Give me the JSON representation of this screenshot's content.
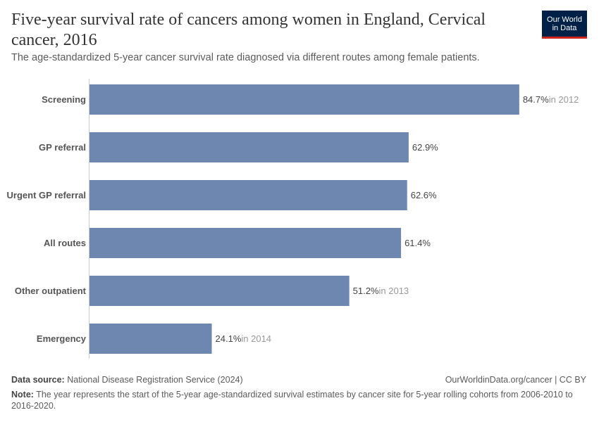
{
  "header": {
    "title": "Five-year survival rate of cancers among women in England, Cervical cancer, 2016",
    "subtitle": "The age-standardized 5-year cancer survival rate diagnosed via different routes among female patients.",
    "logo": "Our World in Data"
  },
  "footer": {
    "source_label": "Data source:",
    "source": "National Disease Registration Service (2024)",
    "link": "OurWorldinData.org/cancer | CC BY",
    "note_label": "Note:",
    "note": "The year represents the start of the 5-year age-standardized survival estimates by cancer site for 5-year rolling cohorts from 2006-2010 to 2016-2020."
  },
  "chart_data": {
    "type": "bar",
    "orientation": "horizontal",
    "title": "",
    "xlabel": "",
    "ylabel": "",
    "grid": false,
    "bar_color": "#6D87B0",
    "categories": [
      "Screening",
      "GP referral",
      "Urgent GP referral",
      "All routes",
      "Other outpatient",
      "Emergency"
    ],
    "values": [
      84.7,
      62.9,
      62.6,
      61.4,
      51.2,
      24.1
    ],
    "value_labels": [
      "84.7%",
      "62.9%",
      "62.6%",
      "61.4%",
      "51.2%",
      "24.1%"
    ],
    "year_notes": [
      "in 2012",
      "",
      "",
      "",
      "in 2013",
      "in 2014"
    ],
    "unit": "%"
  }
}
